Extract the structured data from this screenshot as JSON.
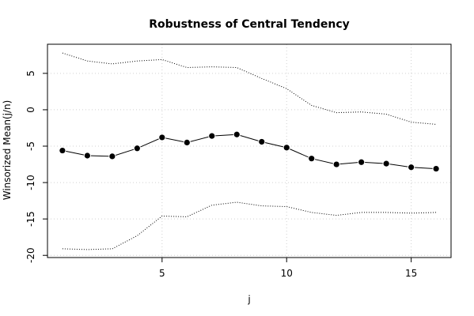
{
  "chart_data": {
    "type": "line",
    "title": "Robustness of Central Tendency",
    "xlabel": "j",
    "ylabel": "Winsorized Mean(j/n)",
    "xlim": [
      0.4,
      16.6
    ],
    "ylim": [
      -20.3,
      9.0
    ],
    "xticks": [
      5,
      10,
      15
    ],
    "yticks": [
      -20,
      -15,
      -10,
      -5,
      0,
      5
    ],
    "grid": true,
    "x": [
      1,
      2,
      3,
      4,
      5,
      6,
      7,
      8,
      9,
      10,
      11,
      12,
      13,
      14,
      15,
      16
    ],
    "series": [
      {
        "style": "line-points",
        "values": [
          -5.6,
          -6.3,
          -6.4,
          -5.3,
          -3.8,
          -4.5,
          -3.6,
          -3.4,
          -4.4,
          -5.2,
          -6.7,
          -7.5,
          -7.2,
          -7.4,
          -7.9,
          -8.1
        ]
      },
      {
        "style": "dotted",
        "values": [
          7.8,
          6.7,
          6.3,
          6.7,
          6.9,
          5.8,
          5.9,
          5.8,
          4.3,
          2.9,
          0.6,
          -0.4,
          -0.3,
          -0.6,
          -1.7,
          -2.0
        ]
      },
      {
        "style": "dotted",
        "values": [
          -19.1,
          -19.2,
          -19.1,
          -17.3,
          -14.6,
          -14.7,
          -13.1,
          -12.7,
          -13.2,
          -13.3,
          -14.1,
          -14.5,
          -14.1,
          -14.1,
          -14.2,
          -14.1
        ]
      }
    ]
  }
}
